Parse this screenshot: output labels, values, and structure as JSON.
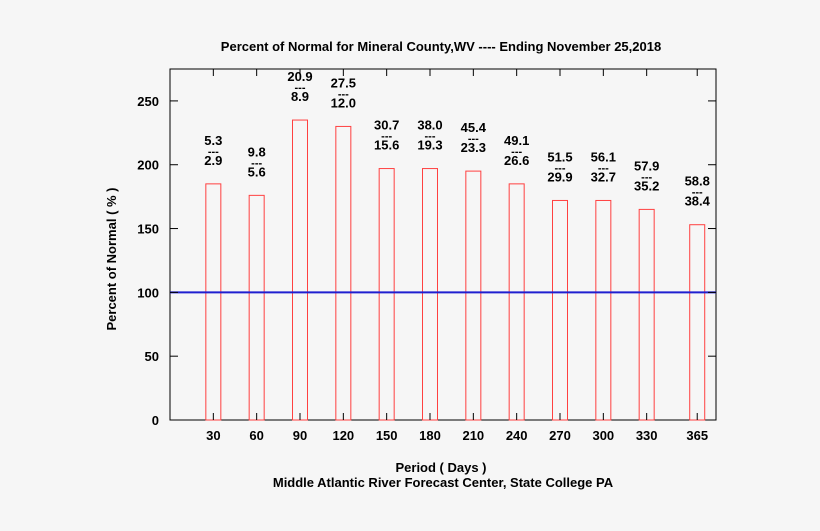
{
  "chart_data": {
    "type": "bar",
    "title": "Percent of Normal for Mineral County,WV ---- Ending November 25,2018",
    "xlabel": "Period ( Days )",
    "ylabel": "Percent of Normal ( % )",
    "credit": "Middle Atlantic River Forecast Center, State College PA",
    "categories": [
      "30",
      "60",
      "90",
      "120",
      "150",
      "180",
      "210",
      "240",
      "270",
      "300",
      "330",
      "365"
    ],
    "values": [
      185,
      176,
      235,
      230,
      197,
      197,
      195,
      185,
      172,
      172,
      165,
      153
    ],
    "observed": [
      "5.3",
      "9.8",
      "20.9",
      "27.5",
      "30.7",
      "38.0",
      "45.4",
      "49.1",
      "51.5",
      "56.1",
      "57.9",
      "58.8"
    ],
    "normal": [
      "2.9",
      "5.6",
      "8.9",
      "12.0",
      "15.6",
      "19.3",
      "23.3",
      "26.6",
      "29.9",
      "32.7",
      "35.2",
      "38.4"
    ],
    "label_separator": "---",
    "ylim": [
      0,
      275
    ],
    "yticks": [
      0,
      50,
      100,
      150,
      200,
      250
    ],
    "reference_line": 100,
    "colors": {
      "bar_stroke": "#ff4040",
      "reference_line": "#1f1fd0",
      "axis": "#000000"
    },
    "grid": false,
    "legend": "none"
  }
}
